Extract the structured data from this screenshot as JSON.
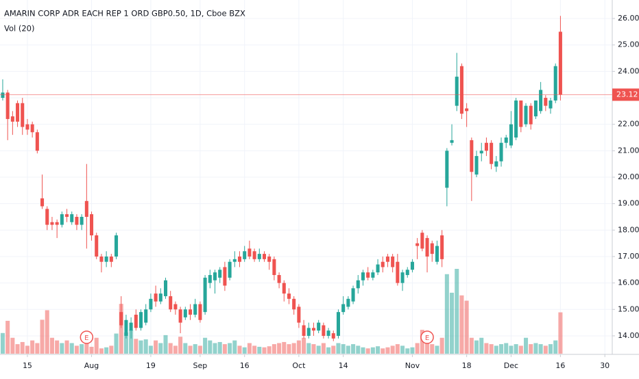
{
  "chart_data": {
    "type": "candlestick",
    "title": "AMARIN CORP ADR EACH REP 1 ORD GBP0.50, 1D, Cboe BZX",
    "subtitle": "Vol (20)",
    "up_color": "#26a69a",
    "down_color": "#ef5350",
    "grid": true,
    "xlim": [
      -0.55,
      123.5
    ],
    "ylim": [
      13.3,
      26.7
    ],
    "vlim": [
      0,
      20
    ],
    "yticks": [
      {
        "value": 14,
        "label": "14.00"
      },
      {
        "value": 15,
        "label": "15.00"
      },
      {
        "value": 16,
        "label": "16.00"
      },
      {
        "value": 17,
        "label": "17.00"
      },
      {
        "value": 18,
        "label": "18.00"
      },
      {
        "value": 19,
        "label": "19.00"
      },
      {
        "value": 20,
        "label": "20.00"
      },
      {
        "value": 21,
        "label": "21.00"
      },
      {
        "value": 22,
        "label": "22.00"
      },
      {
        "value": 23,
        "label": "23.00"
      },
      {
        "value": 24,
        "label": "24.00"
      },
      {
        "value": 25,
        "label": "25.00"
      },
      {
        "value": 26,
        "label": "26.00"
      }
    ],
    "xticks": [
      {
        "value": 5,
        "label": "15"
      },
      {
        "value": 18,
        "label": "Aug"
      },
      {
        "value": 30,
        "label": "19"
      },
      {
        "value": 40,
        "label": "Sep"
      },
      {
        "value": 49,
        "label": "16"
      },
      {
        "value": 60,
        "label": "Oct"
      },
      {
        "value": 69,
        "label": "14"
      },
      {
        "value": 83,
        "label": "Nov"
      },
      {
        "value": 94,
        "label": "18"
      },
      {
        "value": 103,
        "label": "Dec"
      },
      {
        "value": 113,
        "label": "16"
      },
      {
        "value": 122,
        "label": "30"
      }
    ],
    "events": [
      {
        "x": 17,
        "label": "E"
      },
      {
        "x": 86,
        "label": "E"
      }
    ],
    "open": [
      23.0,
      23.2,
      22.3,
      22.8,
      22.8,
      22.0,
      22.0,
      21.7,
      19.2,
      18.8,
      18.3,
      18.3,
      18.2,
      18.6,
      18.3,
      18.5,
      18.2,
      19.1,
      18.6,
      17.8,
      17.0,
      16.8,
      17.0,
      17.0,
      14.9,
      14.0,
      14.2,
      14.8,
      14.3,
      14.5,
      15.0,
      15.6,
      15.3,
      15.5,
      15.5,
      15.2,
      15.0,
      14.7,
      15.0,
      14.8,
      15.2,
      14.9,
      16.0,
      16.1,
      16.2,
      16.6,
      16.2,
      16.8,
      17.0,
      16.9,
      17.3,
      17.2,
      16.9,
      17.1,
      17.0,
      16.9,
      16.3,
      16.0,
      15.6,
      15.4,
      15.1,
      14.4,
      14.0,
      14.3,
      14.2,
      14.4,
      14.0,
      14.1,
      14.0,
      14.9,
      15.1,
      15.3,
      15.8,
      16.1,
      16.4,
      16.2,
      16.4,
      16.8,
      17.0,
      17.0,
      16.8,
      16.0,
      16.3,
      16.5,
      17.5,
      17.9,
      17.7,
      17.5,
      16.8,
      17.8,
      19.6,
      21.3,
      22.7,
      24.2,
      22.6,
      21.4,
      20.1,
      20.9,
      21.3,
      21.3,
      20.4,
      20.6,
      21.3,
      21.2,
      21.5,
      22.9,
      22.0,
      22.7,
      22.3,
      22.5,
      23.0,
      22.6,
      22.9,
      25.5
    ],
    "high": [
      23.7,
      23.3,
      22.5,
      22.9,
      23.0,
      22.2,
      22.1,
      21.8,
      20.1,
      18.9,
      18.5,
      18.4,
      18.7,
      18.8,
      18.7,
      18.6,
      18.6,
      20.5,
      18.7,
      17.9,
      17.1,
      17.2,
      17.1,
      17.9,
      15.5,
      14.8,
      14.7,
      15.0,
      15.0,
      15.2,
      15.6,
      15.9,
      15.8,
      16.2,
      15.7,
      15.3,
      15.1,
      15.1,
      15.2,
      15.4,
      15.3,
      16.3,
      16.5,
      16.5,
      16.6,
      16.8,
      16.9,
      17.2,
      17.2,
      17.4,
      17.6,
      17.3,
      17.3,
      17.2,
      17.1,
      17.0,
      16.4,
      16.1,
      15.8,
      15.5,
      15.2,
      14.6,
      14.5,
      14.5,
      14.6,
      14.5,
      14.3,
      14.2,
      15.0,
      15.5,
      15.5,
      15.9,
      16.3,
      16.5,
      16.6,
      16.5,
      16.9,
      17.0,
      17.1,
      17.1,
      17.1,
      16.5,
      16.6,
      16.9,
      17.7,
      18.0,
      17.8,
      17.6,
      17.6,
      18.0,
      21.1,
      22.0,
      24.7,
      24.3,
      22.8,
      21.5,
      21.0,
      21.3,
      21.5,
      21.4,
      20.8,
      21.5,
      21.6,
      22.5,
      23.0,
      22.9,
      22.8,
      22.8,
      22.9,
      23.6,
      23.1,
      23.0,
      24.3,
      26.1
    ],
    "low": [
      22.9,
      21.4,
      21.6,
      21.9,
      21.6,
      21.6,
      21.5,
      20.9,
      18.8,
      18.0,
      18.0,
      17.7,
      18.1,
      18.3,
      18.2,
      18.0,
      18.0,
      17.3,
      17.6,
      16.9,
      16.4,
      16.6,
      16.6,
      16.9,
      14.3,
      13.9,
      13.9,
      14.2,
      14.2,
      14.4,
      14.9,
      15.1,
      15.2,
      15.4,
      14.9,
      14.8,
      14.1,
      14.6,
      14.6,
      14.7,
      14.5,
      14.8,
      15.8,
      15.6,
      16.0,
      15.7,
      16.1,
      16.6,
      16.6,
      16.8,
      16.9,
      16.8,
      16.8,
      16.8,
      16.5,
      16.1,
      15.8,
      15.3,
      15.2,
      14.8,
      14.3,
      13.9,
      13.9,
      14.0,
      14.1,
      13.9,
      13.9,
      13.8,
      13.9,
      14.8,
      15.0,
      15.2,
      15.6,
      15.9,
      16.1,
      16.1,
      16.3,
      16.4,
      16.6,
      16.4,
      15.9,
      15.7,
      16.2,
      16.4,
      16.9,
      17.2,
      16.4,
      16.8,
      16.7,
      16.6,
      18.9,
      21.2,
      22.5,
      22.2,
      21.9,
      19.1,
      20.0,
      20.6,
      20.8,
      20.3,
      20.2,
      20.4,
      21.1,
      21.1,
      21.4,
      21.7,
      21.9,
      21.8,
      22.2,
      22.4,
      22.5,
      22.4,
      22.8,
      22.9
    ],
    "close": [
      23.2,
      22.2,
      22.1,
      22.1,
      21.9,
      21.8,
      21.7,
      21.0,
      18.9,
      18.2,
      18.2,
      18.2,
      18.6,
      18.5,
      18.6,
      18.2,
      18.5,
      18.5,
      17.8,
      17.0,
      16.8,
      17.0,
      16.8,
      17.8,
      14.4,
      14.6,
      14.5,
      14.3,
      14.9,
      15.0,
      15.4,
      15.3,
      15.6,
      16.1,
      15.0,
      15.0,
      14.5,
      15.0,
      14.8,
      15.2,
      14.6,
      16.2,
      16.3,
      16.4,
      16.5,
      15.9,
      16.8,
      16.9,
      16.8,
      17.2,
      17.0,
      16.9,
      17.1,
      16.9,
      16.8,
      16.3,
      16.0,
      15.6,
      15.4,
      15.0,
      14.5,
      14.0,
      14.3,
      14.2,
      14.5,
      14.0,
      14.2,
      13.9,
      14.9,
      15.2,
      15.4,
      15.8,
      16.1,
      16.4,
      16.2,
      16.4,
      16.7,
      16.6,
      16.8,
      16.6,
      16.0,
      16.4,
      16.5,
      16.8,
      17.4,
      17.3,
      17.0,
      17.1,
      17.4,
      16.9,
      21.0,
      21.4,
      23.8,
      22.4,
      22.5,
      20.2,
      20.8,
      21.0,
      21.0,
      20.5,
      20.6,
      21.3,
      21.5,
      22.0,
      22.9,
      21.9,
      22.7,
      22.0,
      22.9,
      23.3,
      22.7,
      22.9,
      24.2,
      23.12
    ],
    "volume": [
      3.9,
      6.2,
      3.0,
      1.8,
      2.2,
      1.5,
      2.5,
      2.0,
      6.4,
      8.2,
      3.0,
      2.5,
      2.0,
      2.5,
      2.0,
      1.5,
      1.8,
      2.2,
      1.3,
      3.0,
      1.0,
      1.2,
      1.5,
      3.8,
      9.4,
      4.0,
      4.5,
      2.8,
      2.5,
      2.7,
      1.5,
      2.5,
      2.0,
      3.5,
      2.0,
      1.5,
      3.2,
      2.0,
      1.5,
      1.8,
      1.5,
      3.0,
      2.5,
      2.0,
      2.2,
      1.8,
      2.0,
      2.5,
      1.5,
      1.2,
      2.0,
      1.5,
      1.3,
      1.2,
      1.4,
      1.8,
      2.0,
      2.2,
      1.8,
      2.0,
      2.5,
      3.0,
      2.0,
      1.8,
      1.5,
      2.0,
      1.2,
      1.5,
      2.0,
      1.8,
      1.5,
      1.8,
      1.5,
      1.2,
      1.0,
      1.2,
      1.4,
      1.0,
      1.2,
      1.5,
      1.8,
      1.5,
      1.0,
      1.2,
      2.0,
      4.5,
      3.0,
      1.8,
      1.5,
      3.0,
      15.0,
      11.5,
      16.0,
      11.0,
      10.0,
      3.0,
      2.5,
      3.0,
      2.0,
      1.8,
      1.5,
      1.8,
      2.0,
      1.5,
      1.8,
      1.5,
      3.0,
      1.8,
      2.0,
      1.8,
      1.5,
      1.8,
      2.5,
      7.8
    ]
  }
}
